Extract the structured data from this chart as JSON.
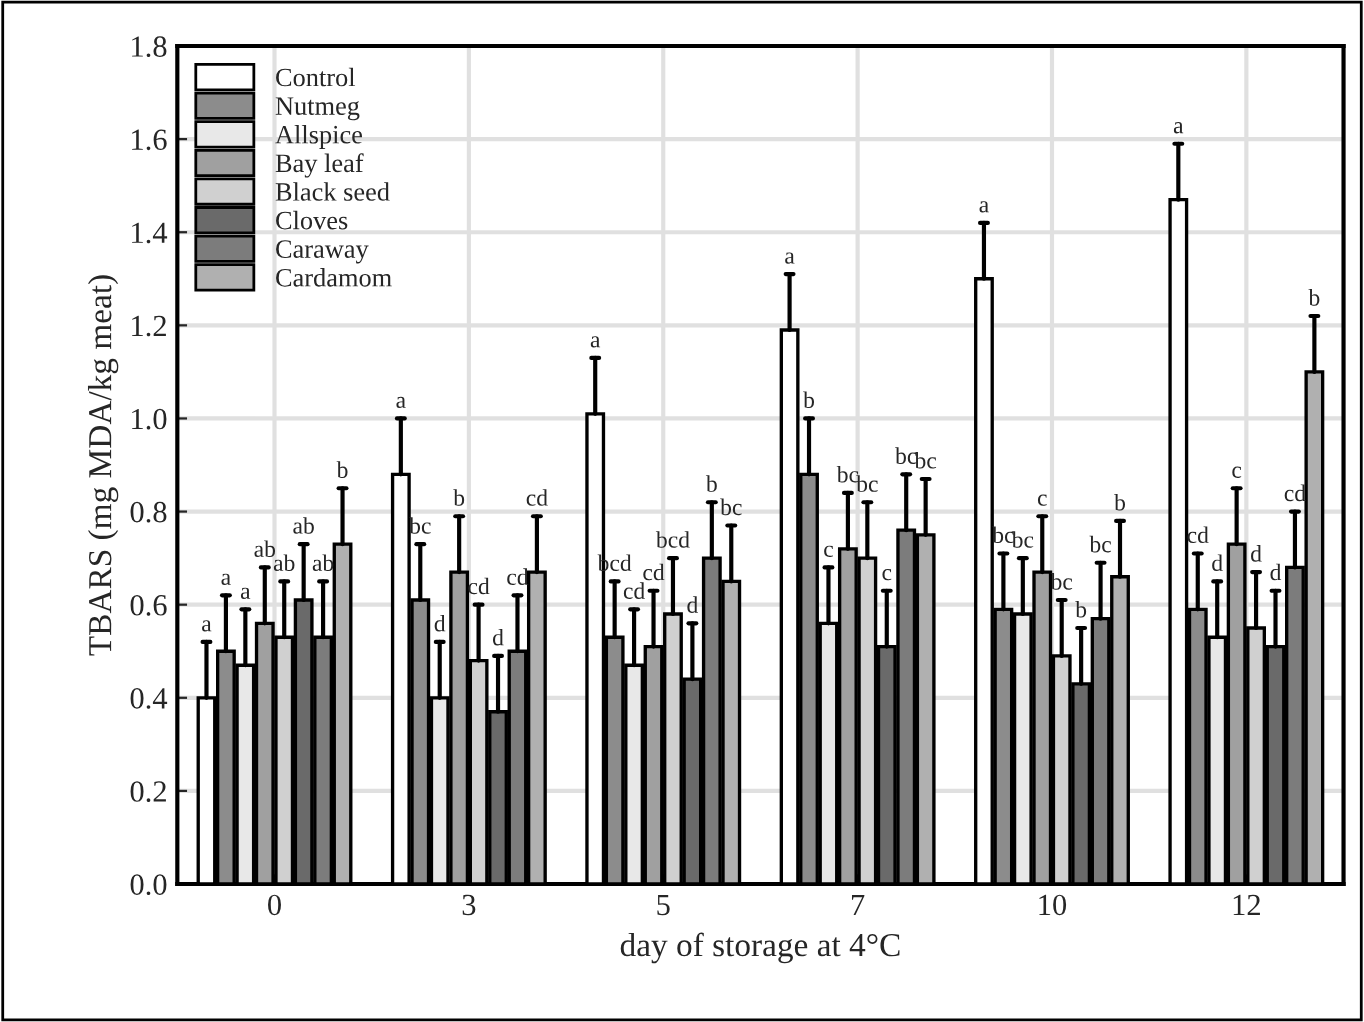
{
  "chart_data": {
    "type": "bar",
    "xlabel": "day of storage at 4°C",
    "ylabel": "TBARS (mg MDA/kg meat)",
    "categories": [
      "0",
      "3",
      "5",
      "7",
      "10",
      "12"
    ],
    "ylim": [
      0,
      1.8
    ],
    "yticks": [
      {
        "value": 0,
        "label": "0.0"
      },
      0.2,
      0.4,
      0.6,
      0.8,
      {
        "value": 1,
        "label": "1.0"
      },
      1.2,
      1.4,
      1.6,
      1.8
    ],
    "grid": true,
    "legend": "top left",
    "series": [
      {
        "name": "Control",
        "color": "#ffffff",
        "values": [
          0.4,
          0.88,
          1.01,
          1.19,
          1.3,
          1.47
        ],
        "errors": [
          [
            0.4,
            0.52
          ],
          [
            0.88,
            1.0
          ],
          [
            1.01,
            1.13
          ],
          [
            1.19,
            1.31
          ],
          [
            1.3,
            1.42
          ],
          [
            1.47,
            1.59
          ]
        ],
        "value_labels": [
          "a",
          "a",
          "a",
          "a",
          "a",
          "a"
        ]
      },
      {
        "name": "Nutmeg",
        "color": "#8c8c8c",
        "values": [
          0.5,
          0.61,
          0.53,
          0.88,
          0.59,
          0.59
        ],
        "errors": [
          [
            0.5,
            0.62
          ],
          [
            0.61,
            0.73
          ],
          [
            0.53,
            0.65
          ],
          [
            0.88,
            1.0
          ],
          [
            0.59,
            0.71
          ],
          [
            0.59,
            0.71
          ]
        ],
        "value_labels": [
          "a",
          "bc",
          "bcd",
          "b",
          "bc",
          "cd"
        ]
      },
      {
        "name": "Allspice",
        "color": "#e8e8e8",
        "values": [
          0.47,
          0.4,
          0.47,
          0.56,
          0.58,
          0.53
        ],
        "errors": [
          [
            0.47,
            0.59
          ],
          [
            0.4,
            0.52
          ],
          [
            0.47,
            0.59
          ],
          [
            0.56,
            0.68
          ],
          [
            0.58,
            0.7
          ],
          [
            0.53,
            0.65
          ]
        ],
        "value_labels": [
          "a",
          "d",
          "cd",
          "c",
          "bc",
          "d"
        ]
      },
      {
        "name": "Bay leaf",
        "color": "#a0a0a0",
        "values": [
          0.56,
          0.67,
          0.51,
          0.72,
          0.67,
          0.73
        ],
        "errors": [
          [
            0.56,
            0.68
          ],
          [
            0.67,
            0.79
          ],
          [
            0.51,
            0.63
          ],
          [
            0.72,
            0.84
          ],
          [
            0.67,
            0.79
          ],
          [
            0.73,
            0.85
          ]
        ],
        "value_labels": [
          "ab",
          "b",
          "cd",
          "bc",
          "c",
          "c"
        ]
      },
      {
        "name": "Black seed",
        "color": "#d0d0d0",
        "values": [
          0.53,
          0.48,
          0.58,
          0.7,
          0.49,
          0.55
        ],
        "errors": [
          [
            0.53,
            0.65
          ],
          [
            0.48,
            0.6
          ],
          [
            0.58,
            0.7
          ],
          [
            0.7,
            0.82
          ],
          [
            0.49,
            0.61
          ],
          [
            0.55,
            0.67
          ]
        ],
        "value_labels": [
          "ab",
          "cd",
          "bcd",
          "bc",
          "bc",
          "d"
        ]
      },
      {
        "name": "Cloves",
        "color": "#6a6a6a",
        "values": [
          0.61,
          0.37,
          0.44,
          0.51,
          0.43,
          0.51
        ],
        "errors": [
          [
            0.61,
            0.73
          ],
          [
            0.37,
            0.49
          ],
          [
            0.44,
            0.56
          ],
          [
            0.51,
            0.63
          ],
          [
            0.43,
            0.55
          ],
          [
            0.51,
            0.63
          ]
        ],
        "value_labels": [
          "ab",
          "d",
          "d",
          "c",
          "b",
          "d"
        ]
      },
      {
        "name": "Caraway",
        "color": "#7c7c7c",
        "values": [
          0.53,
          0.5,
          0.7,
          0.76,
          0.57,
          0.68
        ],
        "errors": [
          [
            0.53,
            0.65
          ],
          [
            0.5,
            0.62
          ],
          [
            0.7,
            0.82
          ],
          [
            0.76,
            0.88
          ],
          [
            0.57,
            0.69
          ],
          [
            0.68,
            0.8
          ]
        ],
        "value_labels": [
          "ab",
          "cd",
          "b",
          "bc",
          "bc",
          "cd"
        ]
      },
      {
        "name": "Cardamom",
        "color": "#b0b0b0",
        "values": [
          0.73,
          0.67,
          0.65,
          0.75,
          0.66,
          1.1
        ],
        "errors": [
          [
            0.73,
            0.85
          ],
          [
            0.67,
            0.79
          ],
          [
            0.65,
            0.77
          ],
          [
            0.75,
            0.87
          ],
          [
            0.66,
            0.78
          ],
          [
            1.1,
            1.22
          ]
        ],
        "value_labels": [
          "b",
          "cd",
          "bc",
          "bc",
          "b",
          "b"
        ]
      }
    ]
  }
}
